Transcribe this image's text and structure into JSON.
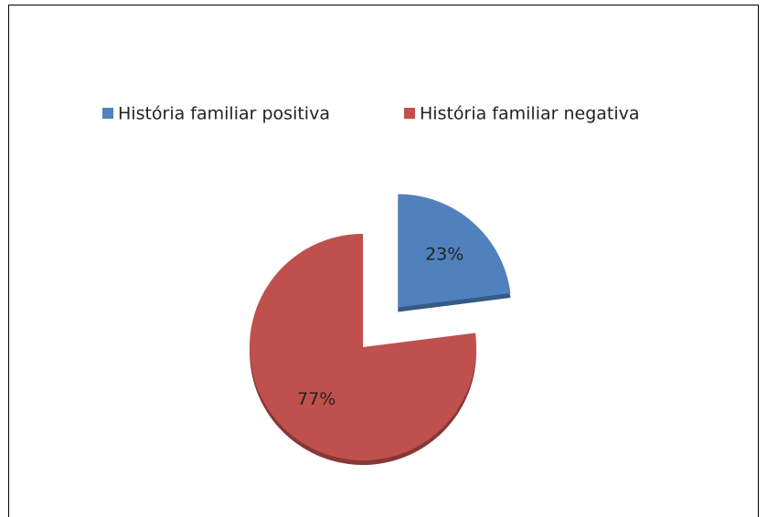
{
  "chart_data": {
    "type": "pie",
    "categories": [
      "História familiar positiva",
      "História familiar negativa"
    ],
    "values": [
      23,
      77
    ],
    "value_labels": [
      "23%",
      "77%"
    ],
    "colors": [
      "#4f81bd",
      "#c0504d"
    ],
    "exploded": [
      true,
      false
    ],
    "legend": "top"
  }
}
